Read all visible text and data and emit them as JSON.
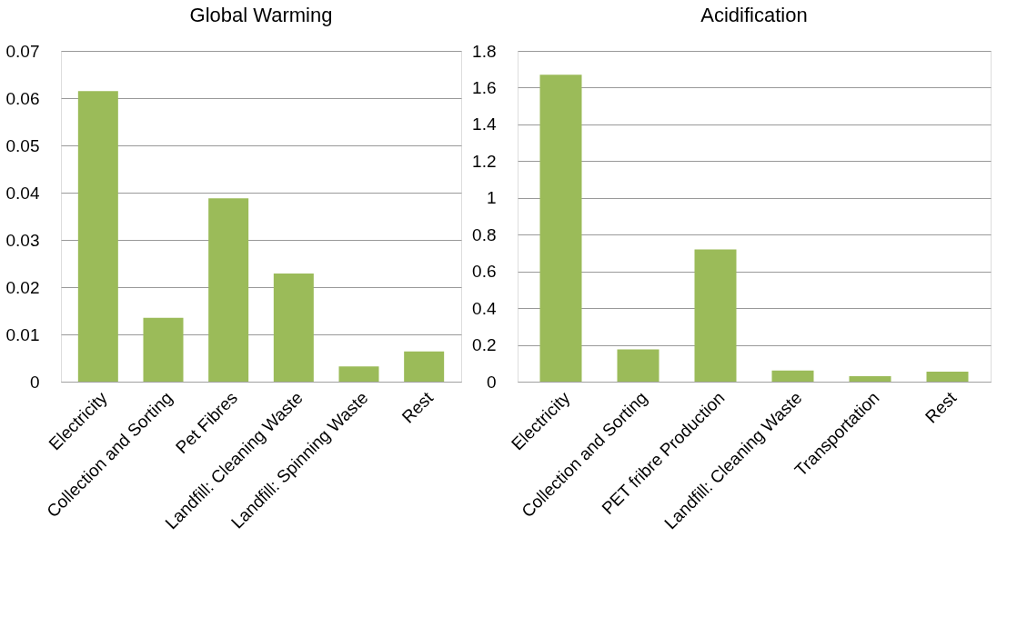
{
  "chart_data": [
    {
      "type": "bar",
      "title": "Global Warming",
      "categories": [
        "Electricity",
        "Collection and Sorting",
        "Pet Fibres",
        "Landfill: Cleaning Waste",
        "Landfill: Spinning Waste",
        "Rest"
      ],
      "values": [
        0.0615,
        0.0135,
        0.0388,
        0.0229,
        0.0032,
        0.0064
      ],
      "color": "#9bbb59",
      "ylim": [
        0,
        0.07
      ],
      "yticks": [
        0,
        0.01,
        0.02,
        0.03,
        0.04,
        0.05,
        0.06,
        0.07
      ],
      "grid": "y"
    },
    {
      "type": "bar",
      "title": "Acidification",
      "categories": [
        "Electricity",
        "Collection and Sorting",
        "PET fribre Production",
        "Landfill: Cleaning Waste",
        "Transportation",
        "Rest"
      ],
      "values": [
        1.67,
        0.175,
        0.72,
        0.06,
        0.03,
        0.055
      ],
      "color": "#9bbb59",
      "ylim": [
        0,
        1.8
      ],
      "yticks": [
        0,
        0.2,
        0.4,
        0.6,
        0.8,
        1,
        1.2,
        1.4,
        1.6,
        1.8
      ],
      "grid": "y"
    }
  ]
}
